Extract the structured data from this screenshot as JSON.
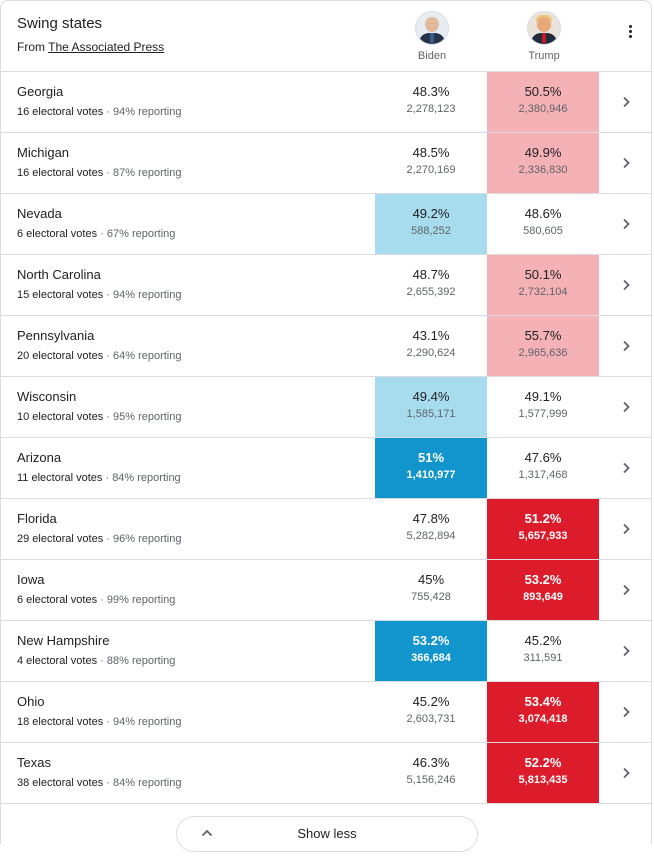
{
  "header": {
    "title": "Swing states",
    "source_prefix": "From",
    "source_link": "The Associated Press"
  },
  "candidates": {
    "biden": {
      "name": "Biden",
      "color": "#1295cc"
    },
    "trump": {
      "name": "Trump",
      "color": "#dc1b2b"
    }
  },
  "states": [
    {
      "name": "Georgia",
      "electoral": "16 electoral votes",
      "reporting": "94% reporting",
      "biden_pct": "48.3%",
      "biden_votes": "2,278,123",
      "trump_pct": "50.5%",
      "trump_votes": "2,380,946"
    },
    {
      "name": "Michigan",
      "electoral": "16 electoral votes",
      "reporting": "87% reporting",
      "biden_pct": "48.5%",
      "biden_votes": "2,270,169",
      "trump_pct": "49.9%",
      "trump_votes": "2,336,830"
    },
    {
      "name": "Nevada",
      "electoral": "6 electoral votes",
      "reporting": "67% reporting",
      "biden_pct": "49.2%",
      "biden_votes": "588,252",
      "trump_pct": "48.6%",
      "trump_votes": "580,605"
    },
    {
      "name": "North Carolina",
      "electoral": "15 electoral votes",
      "reporting": "94% reporting",
      "biden_pct": "48.7%",
      "biden_votes": "2,655,392",
      "trump_pct": "50.1%",
      "trump_votes": "2,732,104"
    },
    {
      "name": "Pennsylvania",
      "electoral": "20 electoral votes",
      "reporting": "64% reporting",
      "biden_pct": "43.1%",
      "biden_votes": "2,290,624",
      "trump_pct": "55.7%",
      "trump_votes": "2,965,636"
    },
    {
      "name": "Wisconsin",
      "electoral": "10 electoral votes",
      "reporting": "95% reporting",
      "biden_pct": "49.4%",
      "biden_votes": "1,585,171",
      "trump_pct": "49.1%",
      "trump_votes": "1,577,999"
    },
    {
      "name": "Arizona",
      "electoral": "11 electoral votes",
      "reporting": "84% reporting",
      "biden_pct": "51%",
      "biden_votes": "1,410,977",
      "trump_pct": "47.6%",
      "trump_votes": "1,317,468"
    },
    {
      "name": "Florida",
      "electoral": "29 electoral votes",
      "reporting": "96% reporting",
      "biden_pct": "47.8%",
      "biden_votes": "5,282,894",
      "trump_pct": "51.2%",
      "trump_votes": "5,657,933"
    },
    {
      "name": "Iowa",
      "electoral": "6 electoral votes",
      "reporting": "99% reporting",
      "biden_pct": "45%",
      "biden_votes": "755,428",
      "trump_pct": "53.2%",
      "trump_votes": "893,649"
    },
    {
      "name": "New Hampshire",
      "electoral": "4 electoral votes",
      "reporting": "88% reporting",
      "biden_pct": "53.2%",
      "biden_votes": "366,684",
      "trump_pct": "45.2%",
      "trump_votes": "311,591"
    },
    {
      "name": "Ohio",
      "electoral": "18 electoral votes",
      "reporting": "94% reporting",
      "biden_pct": "45.2%",
      "biden_votes": "2,603,731",
      "trump_pct": "53.4%",
      "trump_votes": "3,074,418"
    },
    {
      "name": "Texas",
      "electoral": "38 electoral votes",
      "reporting": "84% reporting",
      "biden_pct": "46.3%",
      "biden_votes": "5,156,246",
      "trump_pct": "52.2%",
      "trump_votes": "5,813,435"
    }
  ],
  "footer": {
    "show_less_label": "Show less"
  }
}
